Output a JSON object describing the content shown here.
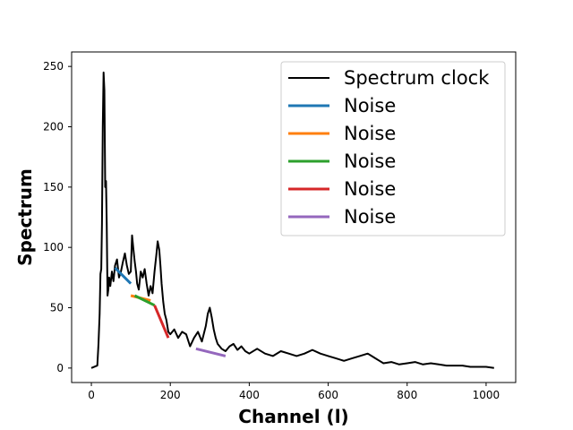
{
  "chart_data": {
    "type": "line",
    "xlabel": "Channel (l)",
    "ylabel": "Spectrum",
    "xlim": [
      -50,
      1075
    ],
    "ylim": [
      -12,
      262
    ],
    "xticks": [
      0,
      200,
      400,
      600,
      800,
      1000
    ],
    "yticks": [
      0,
      50,
      100,
      150,
      200,
      250
    ],
    "grid": false,
    "legend_position": "top-right",
    "colors": {
      "spectrum": "#000000",
      "noise": [
        "#1f77b4",
        "#ff7f0e",
        "#2ca02c",
        "#d62728",
        "#9467bd"
      ]
    },
    "series": [
      {
        "name": "Spectrum clock",
        "x": [
          0,
          15,
          18,
          21,
          23,
          25,
          27,
          29,
          31,
          33,
          35,
          37,
          39,
          41,
          43,
          45,
          48,
          52,
          56,
          60,
          65,
          70,
          75,
          80,
          85,
          90,
          95,
          100,
          103,
          106,
          110,
          113,
          116,
          120,
          125,
          130,
          135,
          140,
          145,
          150,
          155,
          160,
          165,
          168,
          172,
          175,
          178,
          182,
          186,
          190,
          195,
          200,
          210,
          220,
          230,
          240,
          250,
          260,
          270,
          280,
          290,
          295,
          300,
          305,
          310,
          315,
          320,
          330,
          340,
          350,
          360,
          370,
          380,
          390,
          400,
          420,
          440,
          460,
          480,
          500,
          520,
          540,
          560,
          580,
          600,
          620,
          640,
          660,
          680,
          700,
          710,
          720,
          730,
          740,
          760,
          780,
          800,
          820,
          840,
          860,
          880,
          900,
          920,
          940,
          960,
          980,
          1000,
          1020
        ],
        "y": [
          0,
          2,
          20,
          45,
          78,
          82,
          120,
          200,
          245,
          230,
          150,
          155,
          120,
          60,
          65,
          75,
          68,
          80,
          72,
          85,
          90,
          75,
          80,
          88,
          95,
          85,
          78,
          80,
          110,
          100,
          88,
          80,
          70,
          65,
          80,
          75,
          82,
          70,
          60,
          68,
          62,
          80,
          95,
          105,
          98,
          85,
          70,
          55,
          45,
          40,
          30,
          28,
          32,
          25,
          30,
          28,
          18,
          25,
          30,
          22,
          35,
          45,
          50,
          42,
          32,
          25,
          20,
          16,
          14,
          18,
          20,
          15,
          18,
          14,
          12,
          16,
          12,
          10,
          14,
          12,
          10,
          12,
          15,
          12,
          10,
          8,
          6,
          8,
          10,
          12,
          10,
          8,
          6,
          4,
          5,
          3,
          4,
          5,
          3,
          4,
          3,
          2,
          2,
          2,
          1,
          1,
          1,
          0
        ]
      },
      {
        "name": "Noise",
        "x": [
          60,
          100
        ],
        "y": [
          83,
          70
        ]
      },
      {
        "name": "Noise",
        "x": [
          100,
          150
        ],
        "y": [
          60,
          56
        ]
      },
      {
        "name": "Noise",
        "x": [
          110,
          160
        ],
        "y": [
          60,
          52
        ]
      },
      {
        "name": "Noise",
        "x": [
          160,
          195
        ],
        "y": [
          52,
          25
        ]
      },
      {
        "name": "Noise",
        "x": [
          265,
          340
        ],
        "y": [
          16,
          10
        ]
      }
    ]
  }
}
